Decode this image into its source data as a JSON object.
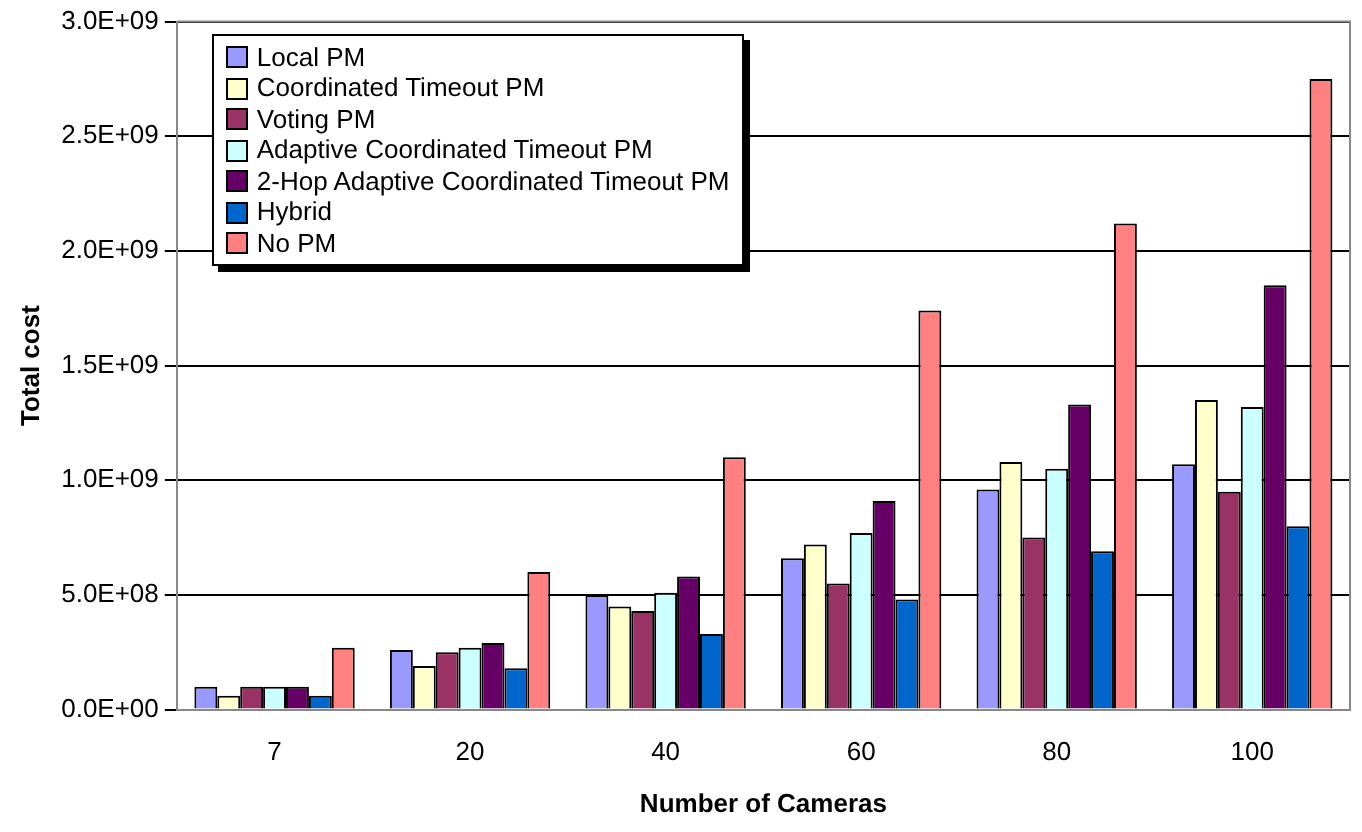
{
  "chart_data": {
    "type": "bar",
    "xlabel": "Number of Cameras",
    "ylabel": "Total cost",
    "categories": [
      "7",
      "20",
      "40",
      "60",
      "80",
      "100"
    ],
    "series": [
      {
        "name": "Local PM",
        "color": "#9999ff",
        "values": [
          100000000.0,
          260000000.0,
          500000000.0,
          660000000.0,
          960000000.0,
          1070000000.0
        ]
      },
      {
        "name": "Coordinated Timeout PM",
        "color": "#ffffcc",
        "values": [
          60000000.0,
          190000000.0,
          450000000.0,
          720000000.0,
          1080000000.0,
          1350000000.0
        ]
      },
      {
        "name": "Voting PM",
        "color": "#993366",
        "values": [
          100000000.0,
          250000000.0,
          430000000.0,
          550000000.0,
          750000000.0,
          950000000.0
        ]
      },
      {
        "name": "Adaptive Coordinated Timeout PM",
        "color": "#ccffff",
        "values": [
          100000000.0,
          270000000.0,
          510000000.0,
          770000000.0,
          1050000000.0,
          1320000000.0
        ]
      },
      {
        "name": "2-Hop Adaptive Coordinated Timeout PM",
        "color": "#660066",
        "values": [
          100000000.0,
          290000000.0,
          580000000.0,
          910000000.0,
          1330000000.0,
          1850000000.0
        ]
      },
      {
        "name": "Hybrid",
        "color": "#0066cc",
        "values": [
          60000000.0,
          180000000.0,
          330000000.0,
          480000000.0,
          690000000.0,
          800000000.0
        ]
      },
      {
        "name": "No PM",
        "color": "#ff8080",
        "values": [
          270000000.0,
          600000000.0,
          1100000000.0,
          1740000000.0,
          2120000000.0,
          2750000000.0
        ]
      }
    ],
    "ylim": [
      0,
      3000000000.0
    ],
    "yticks": [
      {
        "value": 0,
        "label": "0.0E+00"
      },
      {
        "value": 500000000.0,
        "label": "5.0E+08"
      },
      {
        "value": 1000000000.0,
        "label": "1.0E+09"
      },
      {
        "value": 1500000000.0,
        "label": "1.5E+09"
      },
      {
        "value": 2000000000.0,
        "label": "2.0E+09"
      },
      {
        "value": 2500000000.0,
        "label": "2.5E+09"
      },
      {
        "value": 3000000000.0,
        "label": "3.0E+09"
      }
    ],
    "grid": "y",
    "legend": "top left"
  }
}
